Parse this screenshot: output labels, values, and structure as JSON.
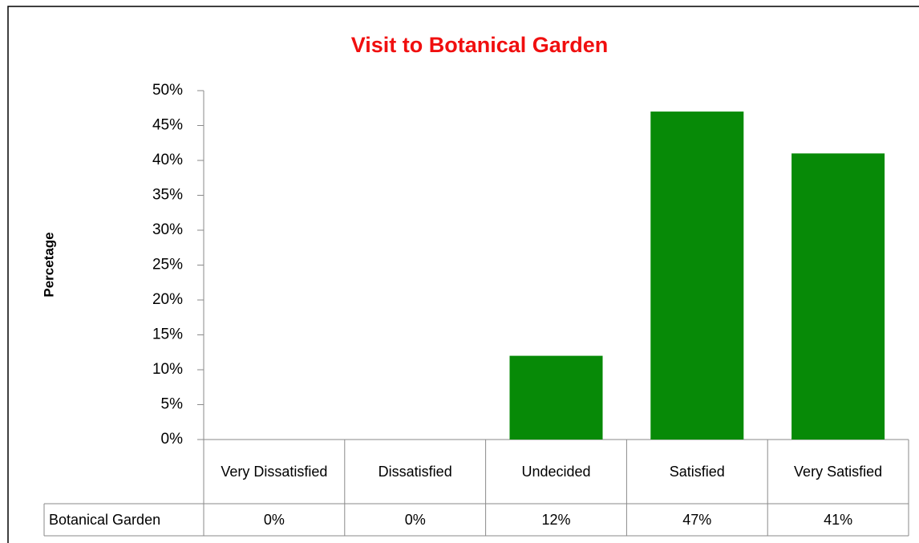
{
  "chart_data": {
    "type": "bar",
    "title": "Visit to Botanical Garden",
    "ylabel": "Percetage",
    "categories": [
      "Very Dissatisfied",
      "Dissatisfied",
      "Undecided",
      "Satisfied",
      "Very Satisfied"
    ],
    "series": [
      {
        "name": "Botanical Garden",
        "color": "#078a07",
        "values": [
          0,
          0,
          12,
          47,
          41
        ],
        "value_labels": [
          "0%",
          "0%",
          "12%",
          "47%",
          "41%"
        ]
      }
    ],
    "ylim": [
      0,
      50
    ],
    "yticks": [
      {
        "value": 0,
        "label": "0%"
      },
      {
        "value": 5,
        "label": "5%"
      },
      {
        "value": 10,
        "label": "10%"
      },
      {
        "value": 15,
        "label": "15%"
      },
      {
        "value": 20,
        "label": "20%"
      },
      {
        "value": 25,
        "label": "25%"
      },
      {
        "value": 30,
        "label": "30%"
      },
      {
        "value": 35,
        "label": "35%"
      },
      {
        "value": 40,
        "label": "40%"
      },
      {
        "value": 45,
        "label": "45%"
      },
      {
        "value": 50,
        "label": "50%"
      }
    ],
    "grid": false
  }
}
